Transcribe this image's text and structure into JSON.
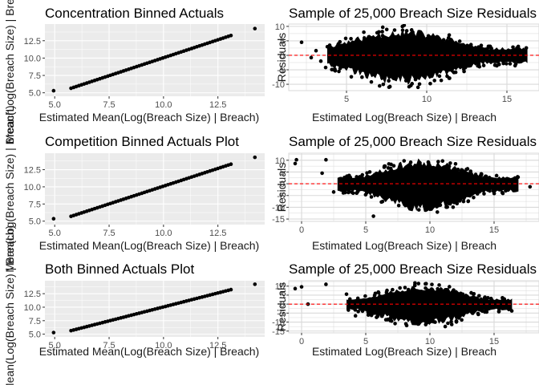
{
  "colors": {
    "panel_bg_grey": "#ebebeb",
    "panel_bg_bw": "#ffffff",
    "grid_major": "#ffffff",
    "grid_bw": "#d9d9d9",
    "points": "#000000",
    "reference_line": "#ff0000",
    "tick_text": "#4d4d4d"
  },
  "chart_data": [
    {
      "id": "concentration-actuals",
      "type": "scatter",
      "theme": "grey",
      "title": "Concentration Binned Actuals",
      "xlabel": "Estimated Mean(Log(Breach Size) | Breach)",
      "ylabel": "Mean(Log(Breach Size) | Breach)",
      "xlim": [
        4.55,
        14.65
      ],
      "ylim": [
        4.5,
        14.9
      ],
      "xticks": [
        5.0,
        7.5,
        10.0,
        12.5
      ],
      "xtick_labels": [
        "5.0",
        "7.5",
        "10.0",
        "12.5"
      ],
      "yticks": [
        5.0,
        7.5,
        10.0,
        12.5
      ],
      "ytick_labels": [
        "5.0",
        "7.5",
        "10.0",
        "12.5"
      ],
      "points": {
        "anchors": [
          [
            4.95,
            5.3
          ],
          [
            14.2,
            14.25
          ]
        ],
        "line_start": [
          5.75,
          5.65
        ],
        "line_end": [
          13.1,
          13.25
        ],
        "n": 62
      }
    },
    {
      "id": "concentration-residuals",
      "type": "scatter",
      "theme": "bw",
      "title": "Sample of 25,000 Breach Size Residuals",
      "xlabel": "Estimated Log(Breach Size) | Breach",
      "ylabel": "Residuals",
      "xlim": [
        1.4,
        17.0
      ],
      "ylim": [
        -12.2,
        10.8
      ],
      "xticks": [
        5,
        10,
        15
      ],
      "xtick_labels": [
        "5",
        "10",
        "15"
      ],
      "yticks": [
        10,
        5,
        0,
        -5,
        -10
      ],
      "ytick_labels": [
        "10",
        "5",
        "0",
        "-5",
        "-10"
      ],
      "hline": 0,
      "cloud": {
        "x_range": [
          3.8,
          16.3
        ],
        "center": 8.5,
        "spread": 3.3,
        "up_max": 9.5,
        "down_max": 11.0,
        "seed": 11
      },
      "outliers": [
        [
          2.2,
          4.5
        ],
        [
          2.8,
          -0.8
        ],
        [
          3.1,
          1.6
        ],
        [
          3.4,
          -2.0
        ],
        [
          3.7,
          -4.2
        ]
      ]
    },
    {
      "id": "competition-actuals",
      "type": "scatter",
      "theme": "grey",
      "title": "Competition Binned Actuals Plot",
      "xlabel": "Estimated Mean(Log(Breach Size) | Breach)",
      "ylabel": "Mean(Log(Breach Size) | Breach)",
      "xlim": [
        4.55,
        14.65
      ],
      "ylim": [
        4.5,
        14.9
      ],
      "xticks": [
        5.0,
        7.5,
        10.0,
        12.5
      ],
      "xtick_labels": [
        "5.0",
        "7.5",
        "10.0",
        "12.5"
      ],
      "yticks": [
        5.0,
        7.5,
        10.0,
        12.5
      ],
      "ytick_labels": [
        "5.0",
        "7.5",
        "10.0",
        "12.5"
      ],
      "points": {
        "anchors": [
          [
            4.95,
            5.35
          ],
          [
            14.2,
            14.3
          ]
        ],
        "line_start": [
          5.75,
          5.7
        ],
        "line_end": [
          13.1,
          13.3
        ],
        "n": 62
      }
    },
    {
      "id": "competition-residuals",
      "type": "scatter",
      "theme": "bw",
      "title": "Sample of 25,000 Breach Size Residuals",
      "xlabel": "Estimated Log(Breach Size) | Breach",
      "ylabel": "Residuals",
      "xlim": [
        -1.0,
        18.5
      ],
      "ylim": [
        -16.0,
        13.0
      ],
      "xticks": [
        0,
        5,
        10,
        15
      ],
      "xtick_labels": [
        "0",
        "5",
        "10",
        "15"
      ],
      "yticks": [
        10,
        5,
        0,
        -5,
        -10,
        -15
      ],
      "ytick_labels": [
        "10",
        "5",
        "0",
        "-5",
        "-10",
        "-15"
      ],
      "hline": 0,
      "cloud": {
        "x_range": [
          2.8,
          17.0
        ],
        "center": 9.5,
        "spread": 3.2,
        "up_max": 11.0,
        "down_max": 13.0,
        "seed": 23
      },
      "outliers": [
        [
          -0.4,
          10.2
        ],
        [
          -0.5,
          8.6
        ],
        [
          1.6,
          4.5
        ],
        [
          1.9,
          10.2
        ],
        [
          17.8,
          -1.3
        ],
        [
          5.6,
          -13.8
        ],
        [
          2.5,
          -3.5
        ]
      ]
    },
    {
      "id": "both-actuals",
      "type": "scatter",
      "theme": "grey",
      "title": "Both Binned Actuals Plot",
      "xlabel": "Estimated Mean(Log(Breach Size) | Breach)",
      "ylabel": "Mean(Log(Breach Size) | Breach)",
      "xlim": [
        4.55,
        14.65
      ],
      "ylim": [
        4.5,
        14.9
      ],
      "xticks": [
        5.0,
        7.5,
        10.0,
        12.5
      ],
      "xtick_labels": [
        "5.0",
        "7.5",
        "10.0",
        "12.5"
      ],
      "yticks": [
        5.0,
        7.5,
        10.0,
        12.5
      ],
      "ytick_labels": [
        "5.0",
        "7.5",
        "10.0",
        "12.5"
      ],
      "points": {
        "anchors": [
          [
            4.95,
            5.3
          ],
          [
            14.2,
            14.25
          ]
        ],
        "line_start": [
          5.75,
          5.65
        ],
        "line_end": [
          13.1,
          13.25
        ],
        "n": 62
      }
    },
    {
      "id": "both-residuals",
      "type": "scatter",
      "theme": "bw",
      "title": "Sample of 25,000 Breach Size Residuals",
      "xlabel": "Estimated Log(Breach Size) | Breach",
      "ylabel": "Residuals",
      "xlim": [
        -1.0,
        18.5
      ],
      "ylim": [
        -16.0,
        13.0
      ],
      "xticks": [
        0,
        5,
        10,
        15
      ],
      "xtick_labels": [
        "0",
        "5",
        "10",
        "15"
      ],
      "yticks": [
        10,
        5,
        0,
        -5,
        -10,
        -15
      ],
      "ytick_labels": [
        "10",
        "5",
        "0",
        "-5",
        "-10",
        "-15"
      ],
      "hline": 0,
      "cloud": {
        "x_range": [
          3.5,
          16.5
        ],
        "center": 9.5,
        "spread": 3.3,
        "up_max": 11.0,
        "down_max": 13.0,
        "seed": 37
      },
      "outliers": [
        [
          -0.5,
          8.6
        ],
        [
          0.0,
          9.6
        ],
        [
          1.9,
          11.0
        ],
        [
          0.5,
          0.0
        ],
        [
          4.2,
          -6.5
        ],
        [
          3.5,
          5.5
        ]
      ]
    }
  ]
}
